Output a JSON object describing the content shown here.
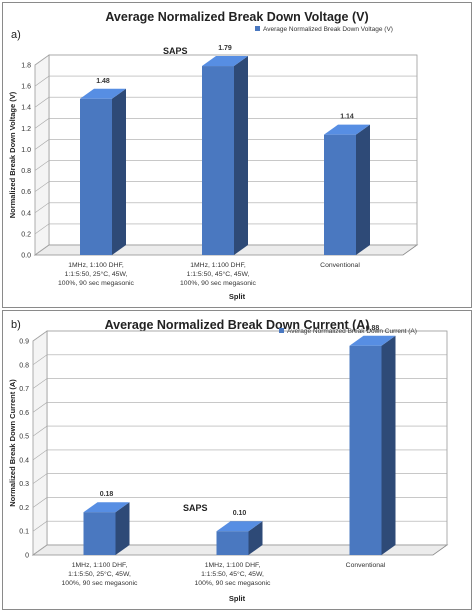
{
  "chart_data": [
    {
      "type": "bar",
      "panel_label": "a)",
      "title": "Average Normalized Break Down Voltage (V)",
      "xlabel": "Split",
      "ylabel": "Normalized Break Down Voltage (V)",
      "categories": [
        [
          "1MHz, 1:100 DHF,",
          "1:1:5:50, 25°C, 45W,",
          "100%, 90 sec megasonic"
        ],
        [
          "1MHz, 1:100 DHF,",
          "1:1:5:50, 45°C, 45W,",
          "100%, 90 sec megasonic"
        ],
        [
          "Conventional"
        ]
      ],
      "series": [
        {
          "name": "Average Normalized Break Down Voltage (V)",
          "values": [
            1.48,
            1.79,
            1.14
          ]
        }
      ],
      "data_labels": [
        "1.48",
        "1.79",
        "1.14"
      ],
      "ylim": [
        0,
        1.8
      ],
      "yticks": [
        "0.0",
        "0.2",
        "0.4",
        "0.6",
        "0.8",
        "1.0",
        "1.2",
        "1.4",
        "1.6",
        "1.8"
      ],
      "annotation": "SAPS",
      "legend_position": "top-right",
      "grid": true,
      "bar_color": "#4a78c0"
    },
    {
      "type": "bar",
      "panel_label": "b)",
      "title": "Average Normalized Break Down Current (A)",
      "xlabel": "Split",
      "ylabel": "Normalized Break Down Current (A)",
      "categories": [
        [
          "1MHz, 1:100 DHF,",
          "1:1:5:50, 25°C, 45W,",
          "100%, 90 sec megasonic"
        ],
        [
          "1MHz, 1:100 DHF,",
          "1:1:5:50, 45°C, 45W,",
          "100%, 90 sec megasonic"
        ],
        [
          "Conventional"
        ]
      ],
      "series": [
        {
          "name": "Average Normalized Break Down Current (A)",
          "values": [
            0.18,
            0.1,
            0.88
          ]
        }
      ],
      "data_labels": [
        "0.18",
        "0.10",
        "0.88"
      ],
      "ylim": [
        0,
        0.9
      ],
      "yticks": [
        "0",
        "0.1",
        "0.2",
        "0.3",
        "0.4",
        "0.5",
        "0.6",
        "0.7",
        "0.8",
        "0.9"
      ],
      "annotation": "SAPS",
      "legend_position": "top-right",
      "grid": true,
      "bar_color": "#4a78c0"
    }
  ]
}
